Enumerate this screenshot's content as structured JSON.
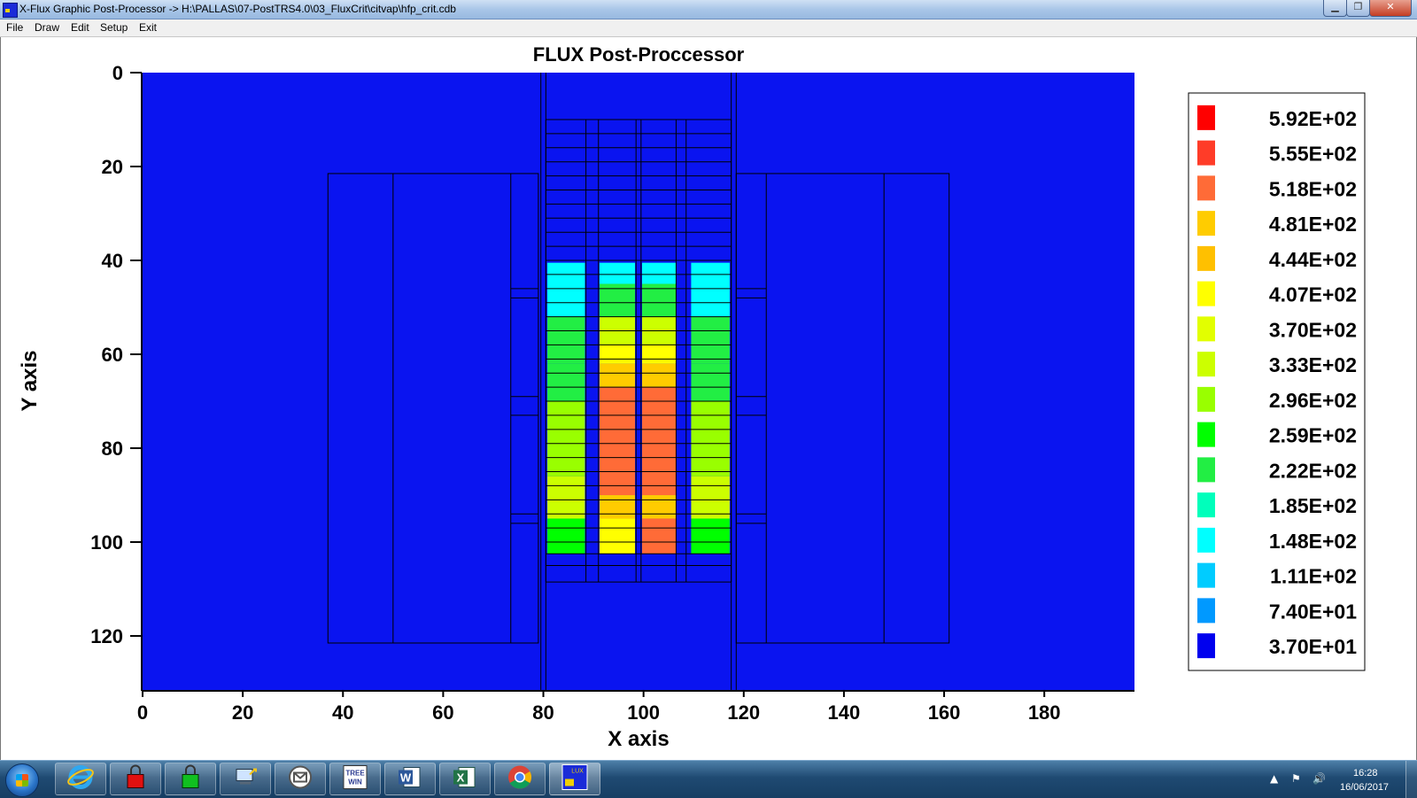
{
  "window": {
    "title": "X-Flux Graphic Post-Processor -> H:\\PALLAS\\07-PostTRS4.0\\03_FluxCrit\\citvap\\hfp_crit.cdb",
    "min_glyph": "▁",
    "max_glyph": "❐",
    "close_glyph": "✕"
  },
  "menu": [
    {
      "label": "File"
    },
    {
      "label": "Draw"
    },
    {
      "label": "Edit"
    },
    {
      "label": "Setup"
    },
    {
      "label": "Exit"
    }
  ],
  "plot": {
    "title": "FLUX Post-Proccessor",
    "xlabel": "X axis",
    "ylabel": "Y axis",
    "background_color": "#0a14f0",
    "x_ticks": [
      "0",
      "20",
      "40",
      "60",
      "80",
      "100",
      "120",
      "140",
      "160",
      "180"
    ],
    "x_tick_values": [
      0,
      20,
      40,
      60,
      80,
      100,
      120,
      140,
      160,
      180
    ],
    "y_ticks": [
      "0",
      "20",
      "40",
      "60",
      "80",
      "100",
      "120"
    ],
    "y_tick_values": [
      0,
      20,
      40,
      60,
      80,
      100,
      120
    ],
    "xlim": [
      0,
      198
    ],
    "ylim_top_down": [
      0,
      131.5
    ]
  },
  "legend": [
    {
      "label": "5.92E+02",
      "color": "#ff0000"
    },
    {
      "label": "5.55E+02",
      "color": "#ff3c28"
    },
    {
      "label": "5.18E+02",
      "color": "#ff6b37"
    },
    {
      "label": "4.81E+02",
      "color": "#ffcc00"
    },
    {
      "label": "4.44E+02",
      "color": "#ffc000"
    },
    {
      "label": "4.07E+02",
      "color": "#ffff00"
    },
    {
      "label": "3.70E+02",
      "color": "#e2ff00"
    },
    {
      "label": "3.33E+02",
      "color": "#ccff00"
    },
    {
      "label": "2.96E+02",
      "color": "#99ff00"
    },
    {
      "label": "2.59E+02",
      "color": "#00ff00"
    },
    {
      "label": "2.22E+02",
      "color": "#22ee44"
    },
    {
      "label": "1.85E+02",
      "color": "#00ffbb"
    },
    {
      "label": "1.48E+02",
      "color": "#00ffff"
    },
    {
      "label": "1.11E+02",
      "color": "#00ccff"
    },
    {
      "label": "7.40E+01",
      "color": "#0099ff"
    },
    {
      "label": "3.70E+01",
      "color": "#0000ee"
    }
  ],
  "chart_data": {
    "type": "heatmap",
    "title": "FLUX Post-Proccessor",
    "xlabel": "X axis",
    "ylabel": "Y axis",
    "xlim": [
      0,
      198
    ],
    "ylim": [
      131.5,
      0
    ],
    "grid": false,
    "legend_position": "right",
    "structures": {
      "outer_blocks": [
        {
          "x": [
            37,
            79
          ],
          "y": [
            21.5,
            121.5
          ],
          "dividers_x": [
            50,
            73.5
          ]
        },
        {
          "x": [
            118.5,
            161
          ],
          "y": [
            21.5,
            121.5
          ],
          "dividers_x": [
            124.5,
            148
          ]
        }
      ],
      "channel_lines_x": [
        79.5,
        80.5,
        117.5,
        118.5
      ],
      "core_region": {
        "x": [
          80.5,
          117.5
        ],
        "y": [
          10,
          108.5
        ]
      },
      "core_columns_x": [
        80.5,
        88.5,
        91,
        98.5,
        99.5,
        106.5,
        108.5,
        117.5
      ],
      "core_row_y": [
        10,
        13,
        16,
        19,
        22,
        25,
        28,
        31,
        34,
        37,
        40,
        43,
        46,
        49,
        52,
        55,
        58,
        61,
        64,
        67,
        70,
        73,
        76,
        79,
        82,
        85,
        88,
        91,
        94,
        97,
        100,
        102.5,
        105,
        108.5
      ]
    },
    "fuel_plates": [
      {
        "x": [
          80.8,
          88.3
        ],
        "y": [
          40.5,
          102.5
        ],
        "profile": [
          {
            "y": [
              40.5,
              52
            ],
            "color": "#00ffff"
          },
          {
            "y": [
              52,
              62
            ],
            "color": "#22ee44"
          },
          {
            "y": [
              62,
              70
            ],
            "color": "#22ee44"
          },
          {
            "y": [
              70,
              86
            ],
            "color": "#99ff00"
          },
          {
            "y": [
              86,
              95
            ],
            "color": "#ccff00"
          },
          {
            "y": [
              95,
              102.5
            ],
            "color": "#00ff00"
          }
        ]
      },
      {
        "x": [
          91.2,
          98.3
        ],
        "y": [
          40.5,
          102.5
        ],
        "profile": [
          {
            "y": [
              40.5,
              45
            ],
            "color": "#00ffff"
          },
          {
            "y": [
              45,
              52
            ],
            "color": "#22ee44"
          },
          {
            "y": [
              52,
              58
            ],
            "color": "#ccff00"
          },
          {
            "y": [
              58,
              62
            ],
            "color": "#ffff00"
          },
          {
            "y": [
              62,
              67
            ],
            "color": "#ffcc00"
          },
          {
            "y": [
              67,
              90
            ],
            "color": "#ff6b37"
          },
          {
            "y": [
              90,
              95
            ],
            "color": "#ffcc00"
          },
          {
            "y": [
              95,
              102.5
            ],
            "color": "#ffff00"
          }
        ]
      },
      {
        "x": [
          99.7,
          106.5
        ],
        "y": [
          40.5,
          102.5
        ],
        "profile": [
          {
            "y": [
              40.5,
              45
            ],
            "color": "#00ffff"
          },
          {
            "y": [
              45,
              52
            ],
            "color": "#22ee44"
          },
          {
            "y": [
              52,
              58
            ],
            "color": "#ccff00"
          },
          {
            "y": [
              58,
              62
            ],
            "color": "#ffff00"
          },
          {
            "y": [
              62,
              67
            ],
            "color": "#ffcc00"
          },
          {
            "y": [
              67,
              90
            ],
            "color": "#ff6b37"
          },
          {
            "y": [
              90,
              95
            ],
            "color": "#ffcc00"
          },
          {
            "y": [
              95,
              102.5
            ],
            "color": "#ff6b37"
          }
        ]
      },
      {
        "x": [
          109.5,
          117.2
        ],
        "y": [
          40.5,
          102.5
        ],
        "profile": [
          {
            "y": [
              40.5,
              52
            ],
            "color": "#00ffff"
          },
          {
            "y": [
              52,
              62
            ],
            "color": "#22ee44"
          },
          {
            "y": [
              62,
              70
            ],
            "color": "#22ee44"
          },
          {
            "y": [
              70,
              86
            ],
            "color": "#99ff00"
          },
          {
            "y": [
              86,
              95
            ],
            "color": "#ccff00"
          },
          {
            "y": [
              95,
              102.5
            ],
            "color": "#00ff00"
          }
        ]
      }
    ]
  },
  "taskbar": {
    "apps": [
      {
        "name": "internet-explorer"
      },
      {
        "name": "lock-red"
      },
      {
        "name": "lock-green"
      },
      {
        "name": "network-tool"
      },
      {
        "name": "mail"
      },
      {
        "name": "treewin",
        "label": "TREE WIN"
      },
      {
        "name": "word",
        "label": "W"
      },
      {
        "name": "excel",
        "label": "X"
      },
      {
        "name": "chrome"
      },
      {
        "name": "xflux",
        "label": "LUX"
      }
    ],
    "clock_time": "16:28",
    "clock_date": "16/06/2017"
  }
}
